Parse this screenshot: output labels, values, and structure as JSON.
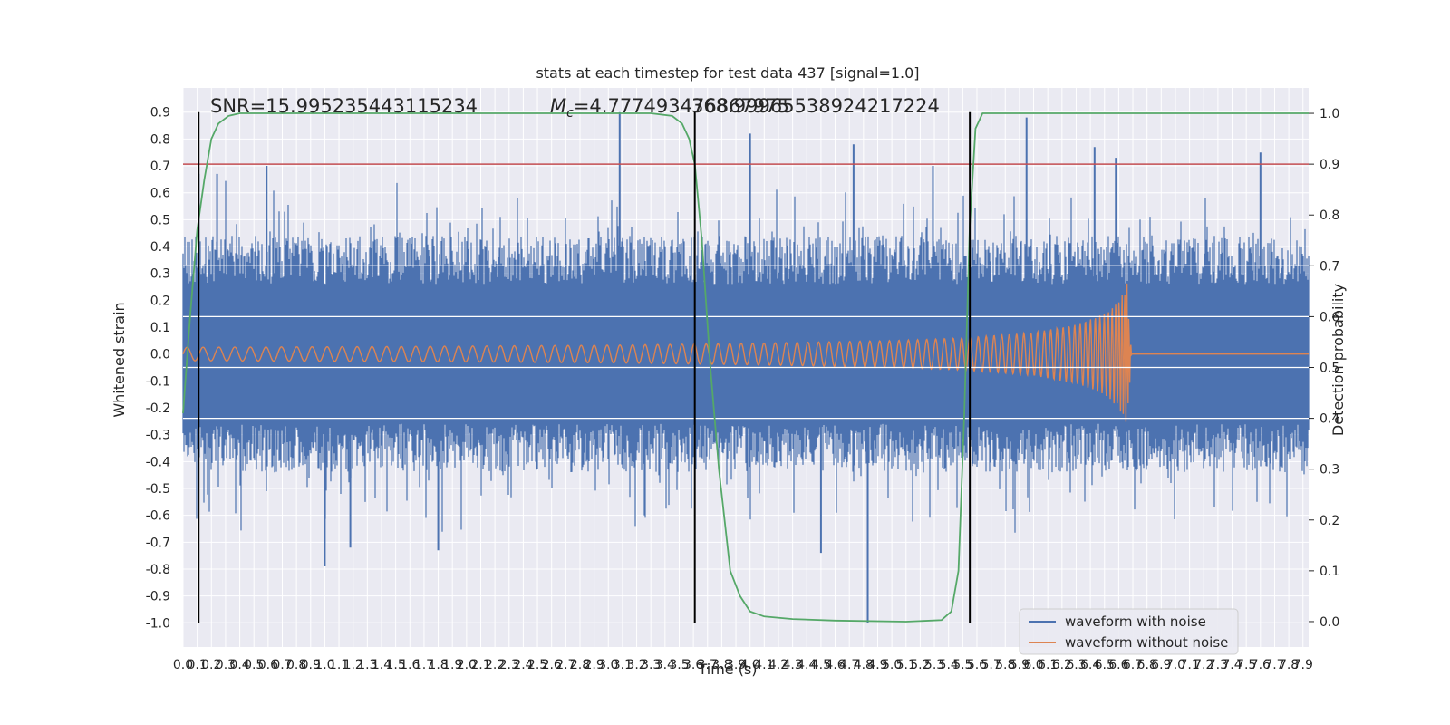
{
  "chart_data": {
    "type": "line",
    "title": "stats at each timestep for test data 437 [signal=1.0]",
    "xlabel": "Time (s)",
    "ylabel": "Whitened strain",
    "y2label": "Detection probability",
    "xlim": [
      0.0,
      7.94
    ],
    "ylim": [
      -1.09,
      0.99
    ],
    "y2lim": [
      -0.05,
      1.05
    ],
    "x_ticks": [
      0.0,
      0.1,
      0.2,
      0.3,
      0.4,
      0.5,
      0.6,
      0.7,
      0.8,
      0.9,
      1.0,
      1.1,
      1.2,
      1.3,
      1.4,
      1.5,
      1.6,
      1.7,
      1.8,
      1.9,
      2.0,
      2.1,
      2.2,
      2.3,
      2.4,
      2.5,
      2.6,
      2.7,
      2.8,
      2.9,
      3.0,
      3.1,
      3.2,
      3.3,
      3.4,
      3.5,
      3.6,
      3.7,
      3.8,
      3.9,
      4.0,
      4.1,
      4.2,
      4.3,
      4.4,
      4.5,
      4.6,
      4.7,
      4.8,
      4.9,
      5.0,
      5.1,
      5.2,
      5.3,
      5.4,
      5.5,
      5.6,
      5.7,
      5.8,
      5.9,
      6.0,
      6.1,
      6.2,
      6.3,
      6.4,
      6.5,
      6.6,
      6.7,
      6.8,
      6.9,
      7.0,
      7.1,
      7.2,
      7.3,
      7.4,
      7.5,
      7.6,
      7.7,
      7.8,
      7.9
    ],
    "y_ticks": [
      0.9,
      0.8,
      0.7,
      0.6,
      0.5,
      0.4,
      0.3,
      0.2,
      0.1,
      0.0,
      -0.1,
      -0.2,
      -0.3,
      -0.4,
      -0.5,
      -0.6,
      -0.7,
      -0.8,
      -0.9,
      -1.0
    ],
    "y2_ticks": [
      1.0,
      0.9,
      0.8,
      0.7,
      0.6,
      0.5,
      0.4,
      0.3,
      0.2,
      0.1,
      0.0
    ],
    "grid": true,
    "legend_position": "bottom-right",
    "annotations": {
      "snr": "SNR=15.995235443115234",
      "mc": "=4.777493476867975",
      "mc_symbol": "M",
      "mc_subscript": "c",
      "overlap": "368.99965538924217224"
    },
    "vertical_lines_x": [
      0.11,
      3.61,
      5.55
    ],
    "threshold_y2": 0.9,
    "horizontal_white_lines_y2": [
      0.7,
      0.6,
      0.5,
      0.4
    ],
    "series": [
      {
        "name": "waveform with noise",
        "color": "#4c72b0",
        "envelope": "noise band approx +/-0.5 with spikes up to 0.9 / -1.0",
        "spikes": [
          {
            "x": 0.11,
            "y": 0.67
          },
          {
            "x": 0.24,
            "y": 0.67
          },
          {
            "x": 0.59,
            "y": 0.7
          },
          {
            "x": 3.08,
            "y": 0.9
          },
          {
            "x": 4.0,
            "y": 0.82
          },
          {
            "x": 4.73,
            "y": 0.78
          },
          {
            "x": 4.83,
            "y": -1.0
          },
          {
            "x": 5.29,
            "y": 0.7
          },
          {
            "x": 5.95,
            "y": 0.88
          },
          {
            "x": 6.43,
            "y": 0.77
          },
          {
            "x": 6.58,
            "y": 0.73
          },
          {
            "x": 7.6,
            "y": 0.75
          },
          {
            "x": 1.0,
            "y": -0.79
          },
          {
            "x": 1.18,
            "y": -0.72
          },
          {
            "x": 1.8,
            "y": -0.73
          },
          {
            "x": 4.5,
            "y": -0.74
          }
        ]
      },
      {
        "name": "waveform without noise",
        "color": "#dd8452",
        "envelope": [
          {
            "x": 0.0,
            "y": 0.025
          },
          {
            "x": 1.5,
            "y": 0.028
          },
          {
            "x": 3.0,
            "y": 0.033
          },
          {
            "x": 4.0,
            "y": 0.04
          },
          {
            "x": 5.0,
            "y": 0.05
          },
          {
            "x": 5.5,
            "y": 0.06
          },
          {
            "x": 6.0,
            "y": 0.08
          },
          {
            "x": 6.3,
            "y": 0.11
          },
          {
            "x": 6.5,
            "y": 0.15
          },
          {
            "x": 6.6,
            "y": 0.2
          },
          {
            "x": 6.66,
            "y": 0.27
          },
          {
            "x": 6.69,
            "y": 0.0
          },
          {
            "x": 7.94,
            "y": 0.0
          }
        ]
      },
      {
        "name": "",
        "axis": "right",
        "color": "#55a868",
        "points": [
          {
            "x": 0.0,
            "y": 0.41
          },
          {
            "x": 0.05,
            "y": 0.6
          },
          {
            "x": 0.1,
            "y": 0.77
          },
          {
            "x": 0.15,
            "y": 0.87
          },
          {
            "x": 0.2,
            "y": 0.95
          },
          {
            "x": 0.25,
            "y": 0.98
          },
          {
            "x": 0.32,
            "y": 0.995
          },
          {
            "x": 0.4,
            "y": 1.0
          },
          {
            "x": 3.3,
            "y": 1.0
          },
          {
            "x": 3.45,
            "y": 0.995
          },
          {
            "x": 3.52,
            "y": 0.98
          },
          {
            "x": 3.57,
            "y": 0.95
          },
          {
            "x": 3.61,
            "y": 0.9
          },
          {
            "x": 3.66,
            "y": 0.75
          },
          {
            "x": 3.72,
            "y": 0.5
          },
          {
            "x": 3.78,
            "y": 0.3
          },
          {
            "x": 3.86,
            "y": 0.1
          },
          {
            "x": 3.93,
            "y": 0.05
          },
          {
            "x": 4.0,
            "y": 0.02
          },
          {
            "x": 4.1,
            "y": 0.01
          },
          {
            "x": 4.3,
            "y": 0.005
          },
          {
            "x": 4.6,
            "y": 0.002
          },
          {
            "x": 5.1,
            "y": 0.0
          },
          {
            "x": 5.35,
            "y": 0.003
          },
          {
            "x": 5.42,
            "y": 0.02
          },
          {
            "x": 5.47,
            "y": 0.1
          },
          {
            "x": 5.51,
            "y": 0.4
          },
          {
            "x": 5.55,
            "y": 0.78
          },
          {
            "x": 5.59,
            "y": 0.97
          },
          {
            "x": 5.64,
            "y": 1.0
          },
          {
            "x": 7.94,
            "y": 1.0
          }
        ]
      }
    ]
  }
}
